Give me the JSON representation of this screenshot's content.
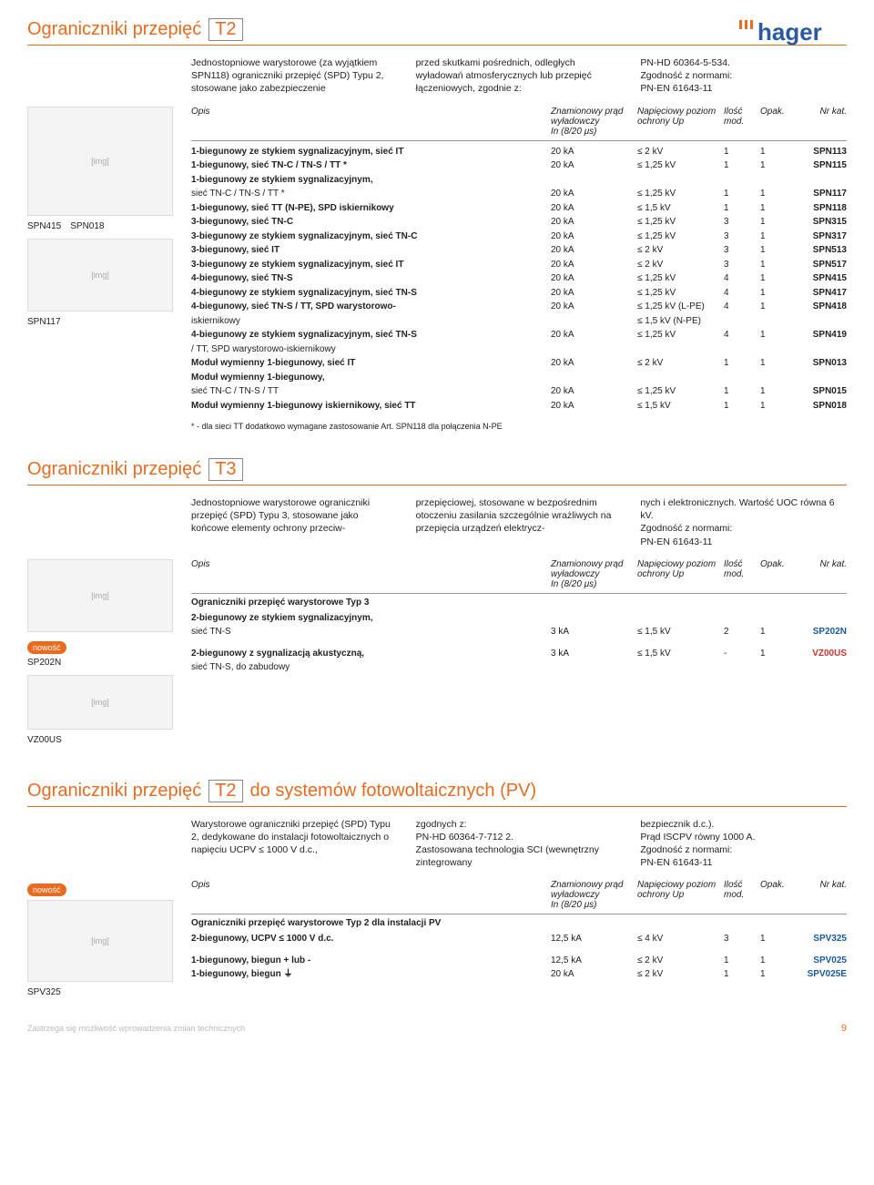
{
  "logo": {
    "h": "h",
    "a": "a",
    "g": "g",
    "e": "e",
    "r": "r",
    "color_blue": "#2b5aa0",
    "dots_color": "#e86b1f"
  },
  "section1": {
    "title_main": "Ograniczniki przepięć",
    "title_box": "T2",
    "intro": {
      "c1": "Jednostopniowe warystorowe (za wyjątkiem SPN118) ograniczniki przepięć (SPD) Typu 2, stosowane jako zabezpieczenie",
      "c2": "przed skutkami pośrednich, odległych wyładowań atmosferycznych lub przepięć łączeniowych, zgodnie z:",
      "c3": "PN-HD 60364-5-534.\nZgodność z normami:\nPN-EN 61643-11"
    },
    "headers": {
      "opis": "Opis",
      "prad": "Znamionowy prąd wyładowczy\nIn (8/20 μs)",
      "nap": "Napięciowy poziom ochrony Up",
      "ilosc": "Ilość mod.",
      "opak": "Opak.",
      "kat": "Nr kat."
    },
    "img_labels": {
      "a": "SPN415",
      "b": "SPN018",
      "c": "SPN117"
    },
    "rows": [
      {
        "opis": "1-biegunowy ze stykiem sygnalizacyjnym, sieć IT",
        "prad": "20 kA",
        "nap": "≤ 2 kV",
        "ilosc": "1",
        "opak": "1",
        "kat": "SPN113",
        "b": true
      },
      {
        "opis": "1-biegunowy, sieć TN-C / TN-S / TT *",
        "prad": "20 kA",
        "nap": "≤ 1,25 kV",
        "ilosc": "1",
        "opak": "1",
        "kat": "SPN115",
        "b": true
      },
      {
        "opis": "1-biegunowy ze stykiem sygnalizacyjnym,",
        "b": true
      },
      {
        "opis": "sieć TN-C / TN-S / TT *",
        "prad": "20 kA",
        "nap": "≤ 1,25 kV",
        "ilosc": "1",
        "opak": "1",
        "kat": "SPN117"
      },
      {
        "opis": "1-biegunowy, sieć TT (N-PE), SPD iskiernikowy",
        "prad": "20 kA",
        "nap": "≤ 1,5 kV",
        "ilosc": "1",
        "opak": "1",
        "kat": "SPN118",
        "b": true
      },
      {
        "opis": "3-biegunowy, sieć TN-C",
        "prad": "20 kA",
        "nap": "≤ 1,25 kV",
        "ilosc": "3",
        "opak": "1",
        "kat": "SPN315",
        "b": true
      },
      {
        "opis": "3-biegunowy ze stykiem sygnalizacyjnym, sieć TN-C",
        "prad": "20 kA",
        "nap": "≤ 1,25 kV",
        "ilosc": "3",
        "opak": "1",
        "kat": "SPN317",
        "b": true
      },
      {
        "opis": "3-biegunowy, sieć IT",
        "prad": "20 kA",
        "nap": "≤ 2 kV",
        "ilosc": "3",
        "opak": "1",
        "kat": "SPN513",
        "b": true
      },
      {
        "opis": "3-biegunowy ze stykiem sygnalizacyjnym, sieć IT",
        "prad": "20 kA",
        "nap": "≤ 2 kV",
        "ilosc": "3",
        "opak": "1",
        "kat": "SPN517",
        "b": true
      },
      {
        "opis": "4-biegunowy, sieć TN-S",
        "prad": "20 kA",
        "nap": "≤ 1,25 kV",
        "ilosc": "4",
        "opak": "1",
        "kat": "SPN415",
        "b": true
      },
      {
        "opis": "4-biegunowy ze stykiem sygnalizacyjnym, sieć TN-S",
        "prad": "20 kA",
        "nap": "≤ 1,25 kV",
        "ilosc": "4",
        "opak": "1",
        "kat": "SPN417",
        "b": true
      },
      {
        "opis": "4-biegunowy, sieć TN-S / TT, SPD warystorowo-",
        "prad": "20 kA",
        "nap": "≤ 1,25 kV (L-PE)",
        "ilosc": "4",
        "opak": "1",
        "kat": "SPN418",
        "b": true
      },
      {
        "opis": "iskiernikowy",
        "nap": "≤ 1,5 kV (N-PE)"
      },
      {
        "opis": "4-biegunowy ze stykiem sygnalizacyjnym, sieć TN-S",
        "prad": "20 kA",
        "nap": "≤ 1,25 kV",
        "ilosc": "4",
        "opak": "1",
        "kat": "SPN419",
        "b": true
      },
      {
        "opis": "/ TT, SPD warystorowo-iskiernikowy"
      },
      {
        "opis": "Moduł wymienny 1-biegunowy, sieć IT",
        "prad": "20 kA",
        "nap": "≤ 2 kV",
        "ilosc": "1",
        "opak": "1",
        "kat": "SPN013",
        "b": true
      },
      {
        "opis": "Moduł wymienny 1-biegunowy,",
        "b": true
      },
      {
        "opis": "sieć TN-C / TN-S / TT",
        "prad": "20 kA",
        "nap": "≤ 1,25 kV",
        "ilosc": "1",
        "opak": "1",
        "kat": "SPN015"
      },
      {
        "opis": "Moduł wymienny 1-biegunowy iskiernikowy, sieć TT",
        "prad": "20 kA",
        "nap": "≤ 1,5 kV",
        "ilosc": "1",
        "opak": "1",
        "kat": "SPN018",
        "b": true
      }
    ],
    "footnote": "* - dla sieci TT dodatkowo wymagane zastosowanie Art. SPN118 dla połączenia N-PE"
  },
  "section2": {
    "title_main": "Ograniczniki przepięć",
    "title_box": "T3",
    "intro": {
      "c1": "Jednostopniowe warystorowe ograniczniki przepięć (SPD) Typu 3, stosowane jako końcowe elementy ochrony przeciw-",
      "c2": "przepięciowej, stosowane w bezpośrednim otoczeniu zasilania szczególnie wrażliwych na przepięcia urządzeń elektrycz-",
      "c3": "nych i elektronicznych. Wartość UOC równa 6 kV.\nZgodność z normami:\nPN-EN 61643-11"
    },
    "img_labels": {
      "a": "SP202N",
      "b": "VZ00US"
    },
    "nowosc": "nowość",
    "subheader": "Ograniczniki przepięć warystorowe Typ 3",
    "rows": [
      {
        "opis": "2-biegunowy ze stykiem sygnalizacyjnym,",
        "b": true
      },
      {
        "opis": "sieć TN-S",
        "prad": "3 kA",
        "nap": "≤ 1,5 kV",
        "ilosc": "2",
        "opak": "1",
        "kat": "SP202N",
        "katc": "blue"
      },
      {
        "gap": true
      },
      {
        "opis": "2-biegunowy z sygnalizacją akustyczną,",
        "prad": "3 kA",
        "nap": "≤ 1,5 kV",
        "ilosc": "-",
        "opak": "1",
        "kat": "VZ00US",
        "katc": "red",
        "b": true
      },
      {
        "opis": "sieć TN-S, do zabudowy"
      }
    ]
  },
  "section3": {
    "title_main": "Ograniczniki przepięć",
    "title_box": "T2",
    "title_suffix": "do systemów fotowoltaicznych (PV)",
    "intro": {
      "c1": "Warystorowe ograniczniki przepięć (SPD) Typu 2, dedykowane do instalacji fotowoltaicznych o napięciu UCPV ≤ 1000 V d.c.,",
      "c2": "zgodnych z:\nPN-HD 60364-7-712 2.\nZastosowana technologia SCI (wewnętrzny zintegrowany",
      "c3": "bezpiecznik d.c.).\nPrąd ISCPV równy 1000 A.\nZgodność z normami:\nPN-EN 61643-11"
    },
    "img_labels": {
      "a": "SPV325"
    },
    "nowosc": "nowość",
    "subheader": "Ograniczniki przepięć warystorowe Typ 2 dla  instalacji PV",
    "rows": [
      {
        "opis": "2-biegunowy, UCPV ≤ 1000 V d.c.",
        "prad": "12,5 kA",
        "nap": "≤ 4 kV",
        "ilosc": "3",
        "opak": "1",
        "kat": "SPV325",
        "katc": "blue",
        "b": true
      },
      {
        "gap": true
      },
      {
        "opis": "1-biegunowy, biegun + lub -",
        "prad": "12,5 kA",
        "nap": "≤ 2 kV",
        "ilosc": "1",
        "opak": "1",
        "kat": "SPV025",
        "katc": "blue",
        "b": true
      },
      {
        "opis": "1-biegunowy, biegun ⏚",
        "prad": "20 kA",
        "nap": "≤ 2 kV",
        "ilosc": "1",
        "opak": "1",
        "kat": "SPV025E",
        "katc": "blue",
        "b": true
      }
    ]
  },
  "footer": {
    "text": "Zastrzega się możliwość wprowadzenia zmian technicznych",
    "page": "9"
  }
}
